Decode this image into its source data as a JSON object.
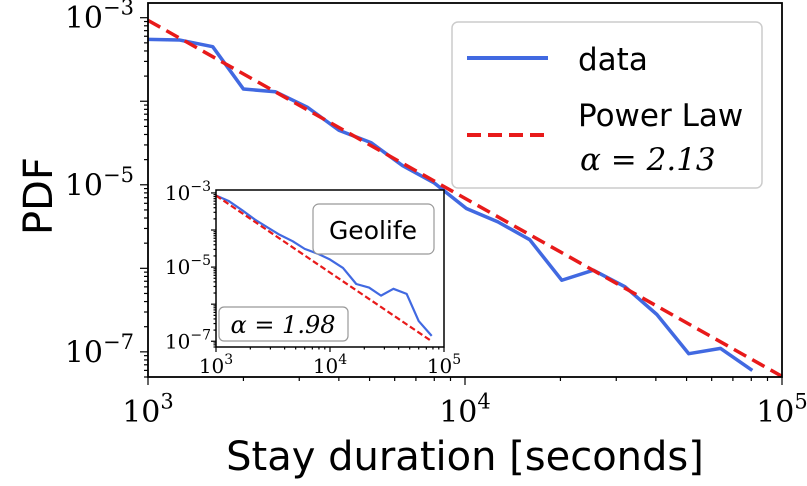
{
  "chart_data": [
    {
      "type": "line",
      "xlabel": "Stay duration [seconds]",
      "ylabel": "PDF",
      "xscale": "log",
      "yscale": "log",
      "xlim": [
        1000,
        100000
      ],
      "ylim": [
        5e-08,
        0.0015
      ],
      "xticks": [
        {
          "value": 1000,
          "base": "10",
          "exp": "3"
        },
        {
          "value": 10000,
          "base": "10",
          "exp": "4"
        },
        {
          "value": 100000,
          "base": "10",
          "exp": "5"
        }
      ],
      "yticks": [
        {
          "value": 0.001,
          "base": "10",
          "exp": "−3"
        },
        {
          "value": 1e-05,
          "base": "10",
          "exp": "−5"
        },
        {
          "value": 1e-07,
          "base": "10",
          "exp": "−7"
        }
      ],
      "grid": false,
      "legend_position": "top-right",
      "series": [
        {
          "name": "data",
          "style": "solid",
          "color": "#4169e1",
          "x": [
            1000,
            1260,
            1600,
            2000,
            2520,
            3180,
            4000,
            5050,
            6350,
            8000,
            10100,
            12700,
            16000,
            20200,
            25400,
            32000,
            40300,
            50800,
            64000,
            80600
          ],
          "y": [
            0.00055,
            0.00054,
            0.00045,
            0.00014,
            0.00013,
            8.5e-05,
            4.5e-05,
            3.2e-05,
            1.7e-05,
            1.05e-05,
            5.2e-06,
            3.6e-06,
            2.2e-06,
            7.2e-07,
            9.5e-07,
            6e-07,
            2.8e-07,
            9.5e-08,
            1.1e-07,
            6e-08
          ]
        },
        {
          "name": "Power Law",
          "style": "dashed",
          "color": "#e81a1a",
          "fit_label": "α = 2.13",
          "x": [
            1000,
            100000
          ],
          "y": [
            0.00093,
            5.09e-08
          ]
        }
      ]
    },
    {
      "type": "line",
      "position": "inset",
      "xscale": "log",
      "yscale": "log",
      "xlim": [
        1000,
        100000
      ],
      "ylim": [
        7e-08,
        0.0012
      ],
      "xticks": [
        {
          "value": 1000,
          "base": "10",
          "exp": "3"
        },
        {
          "value": 10000,
          "base": "10",
          "exp": "4"
        },
        {
          "value": 100000,
          "base": "10",
          "exp": "5"
        }
      ],
      "yticks": [
        {
          "value": 0.001,
          "base": "10",
          "exp": "−3"
        },
        {
          "value": 1e-05,
          "base": "10",
          "exp": "−5"
        },
        {
          "value": 1e-07,
          "base": "10",
          "exp": "−7"
        }
      ],
      "annotation": "Geolife",
      "fit_label": "α = 1.98",
      "series": [
        {
          "name": "data",
          "style": "solid",
          "color": "#4169e1",
          "x": [
            1000,
            1300,
            1700,
            2200,
            2800,
            3600,
            4700,
            6000,
            7800,
            10000,
            13000,
            17000,
            22000,
            28000,
            36000,
            47000,
            60000,
            78000
          ],
          "y": [
            0.00085,
            0.0006,
            0.00034,
            0.00019,
            0.00012,
            7.5e-05,
            5e-05,
            3.1e-05,
            2.3e-05,
            1.6e-05,
            9.5e-06,
            3.5e-06,
            2.8e-06,
            1.7e-06,
            2.6e-06,
            1.9e-06,
            3.5e-07,
            1.4e-07
          ]
        },
        {
          "name": "Power Law",
          "style": "dashed",
          "color": "#e81a1a",
          "x": [
            1000,
            78000
          ],
          "y": [
            0.00085,
            1e-07
          ]
        }
      ]
    }
  ]
}
